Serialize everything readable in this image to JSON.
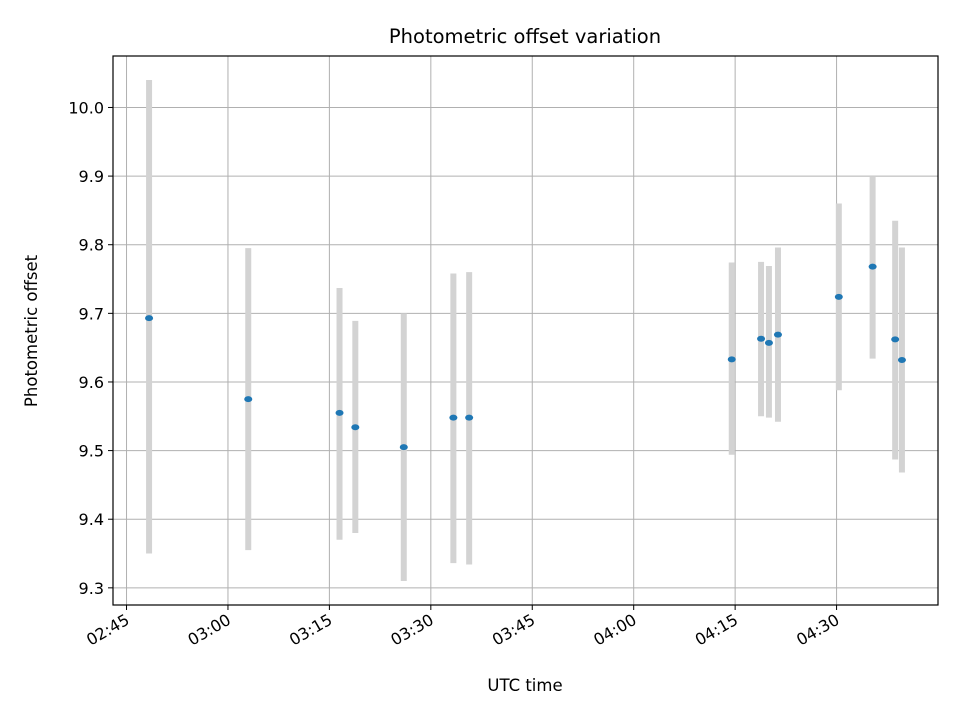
{
  "chart_data": {
    "type": "scatter",
    "title": "Photometric offset variation",
    "xlabel": "UTC time",
    "ylabel": "Photometric offset",
    "x_is_time": true,
    "xlim": [
      "02:43",
      "04:45"
    ],
    "ylim": [
      9.275,
      10.075
    ],
    "x_ticks": [
      "02:45",
      "03:00",
      "03:15",
      "03:30",
      "03:45",
      "04:00",
      "04:15",
      "04:30"
    ],
    "y_ticks": [
      "9.3",
      "9.4",
      "9.5",
      "9.6",
      "9.7",
      "9.8",
      "9.9",
      "10.0"
    ],
    "grid": true,
    "point_color": "#1f77b4",
    "errorbar_color": "#d3d3d3",
    "points": [
      {
        "x": "02:48:20",
        "y": 9.693,
        "y_low": 9.35,
        "y_high": 10.04
      },
      {
        "x": "03:03:00",
        "y": 9.575,
        "y_low": 9.355,
        "y_high": 9.795
      },
      {
        "x": "03:16:30",
        "y": 9.555,
        "y_low": 9.37,
        "y_high": 9.737
      },
      {
        "x": "03:18:50",
        "y": 9.534,
        "y_low": 9.38,
        "y_high": 9.689
      },
      {
        "x": "03:26:00",
        "y": 9.505,
        "y_low": 9.31,
        "y_high": 9.7
      },
      {
        "x": "03:33:20",
        "y": 9.548,
        "y_low": 9.336,
        "y_high": 9.758
      },
      {
        "x": "03:35:40",
        "y": 9.548,
        "y_low": 9.334,
        "y_high": 9.76
      },
      {
        "x": "04:14:30",
        "y": 9.633,
        "y_low": 9.494,
        "y_high": 9.774
      },
      {
        "x": "04:18:50",
        "y": 9.663,
        "y_low": 9.55,
        "y_high": 9.775
      },
      {
        "x": "04:20:00",
        "y": 9.657,
        "y_low": 9.548,
        "y_high": 9.769
      },
      {
        "x": "04:21:20",
        "y": 9.669,
        "y_low": 9.542,
        "y_high": 9.796
      },
      {
        "x": "04:30:20",
        "y": 9.724,
        "y_low": 9.588,
        "y_high": 9.86
      },
      {
        "x": "04:35:20",
        "y": 9.768,
        "y_low": 9.634,
        "y_high": 9.9
      },
      {
        "x": "04:38:40",
        "y": 9.662,
        "y_low": 9.487,
        "y_high": 9.835
      },
      {
        "x": "04:39:40",
        "y": 9.632,
        "y_low": 9.468,
        "y_high": 9.796
      }
    ]
  }
}
